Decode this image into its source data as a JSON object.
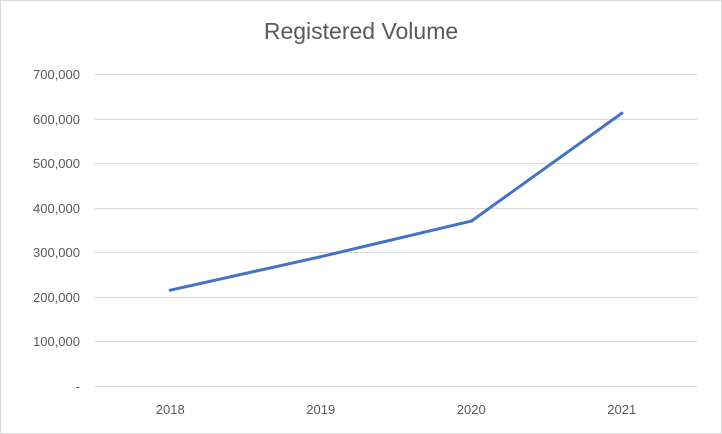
{
  "chart_data": {
    "type": "line",
    "title": "Registered Volume",
    "categories": [
      "2018",
      "2019",
      "2020",
      "2021"
    ],
    "series": [
      {
        "name": "Registered Volume",
        "values": [
          215000,
          290000,
          370000,
          612000
        ]
      }
    ],
    "xlabel": "",
    "ylabel": "",
    "ylim": [
      0,
      700000
    ],
    "yticks": [
      0,
      100000,
      200000,
      300000,
      400000,
      500000,
      600000,
      700000
    ],
    "ytick_labels": [
      "-",
      "100,000",
      "200,000",
      "300,000",
      "400,000",
      "500,000",
      "600,000",
      "700,000"
    ],
    "grid": true,
    "legend": "none",
    "line_color": "#4472c4",
    "grid_color": "#d9d9d9"
  }
}
